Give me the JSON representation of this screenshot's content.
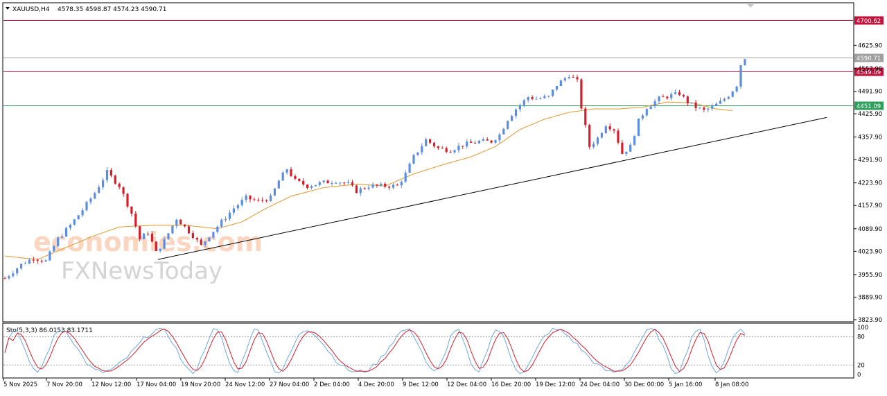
{
  "header": {
    "symbol": "XAUUSD,H4",
    "ohlc": "4578.35 4598.87 4574.23 4590.71"
  },
  "watermark": {
    "line1": "economies.com",
    "line2": "FXNewsToday"
  },
  "chart_data": {
    "type": "candlestick",
    "y_ticks": [
      "4625.90",
      "4557.90",
      "4491.90",
      "4425.90",
      "4357.90",
      "4291.90",
      "4223.90",
      "4157.90",
      "4089.90",
      "4023.90",
      "3955.90",
      "3889.90",
      "3823.90"
    ],
    "ylim": [
      3823.9,
      4700
    ],
    "x_ticks": [
      "5 Nov 2025",
      "7 Nov 20:00",
      "12 Nov 12:00",
      "17 Nov 04:00",
      "19 Nov 20:00",
      "24 Nov 12:00",
      "27 Nov 04:00",
      "2 Dec 04:00",
      "4 Dec 20:00",
      "9 Dec 12:00",
      "12 Dec 04:00",
      "16 Dec 20:00",
      "19 Dec 12:00",
      "24 Dec 04:00",
      "30 Dec 00:00",
      "5 Jan 16:00",
      "8 Jan 08:00"
    ],
    "horizontal_levels": [
      {
        "label": "4700.62",
        "value": 4700.62,
        "color": "#c0143c"
      },
      {
        "label": "4590.71",
        "value": 4590.71,
        "color": "#a0a0a0"
      },
      {
        "label": "4549.09",
        "value": 4549.09,
        "color": "#c0143c"
      },
      {
        "label": "4451.09",
        "value": 4451.09,
        "color": "#2e9e5b"
      }
    ],
    "price_path": [
      [
        0,
        3945
      ],
      [
        4,
        3985
      ],
      [
        7,
        4005
      ],
      [
        10,
        3995
      ],
      [
        13,
        4060
      ],
      [
        16,
        4100
      ],
      [
        19,
        4145
      ],
      [
        22,
        4195
      ],
      [
        25,
        4255
      ],
      [
        28,
        4215
      ],
      [
        31,
        4135
      ],
      [
        33,
        4060
      ],
      [
        35,
        4080
      ],
      [
        37,
        4020
      ],
      [
        39,
        4055
      ],
      [
        42,
        4120
      ],
      [
        44,
        4095
      ],
      [
        46,
        4070
      ],
      [
        48,
        4040
      ],
      [
        50,
        4070
      ],
      [
        53,
        4110
      ],
      [
        56,
        4150
      ],
      [
        59,
        4180
      ],
      [
        62,
        4170
      ],
      [
        65,
        4180
      ],
      [
        67,
        4230
      ],
      [
        69,
        4265
      ],
      [
        71,
        4230
      ],
      [
        74,
        4215
      ],
      [
        78,
        4225
      ],
      [
        81,
        4230
      ],
      [
        84,
        4220
      ],
      [
        86,
        4200
      ],
      [
        89,
        4215
      ],
      [
        93,
        4215
      ],
      [
        96,
        4215
      ],
      [
        98,
        4250
      ],
      [
        100,
        4300
      ],
      [
        103,
        4350
      ],
      [
        106,
        4325
      ],
      [
        109,
        4320
      ],
      [
        112,
        4335
      ],
      [
        116,
        4345
      ],
      [
        119,
        4345
      ],
      [
        121,
        4365
      ],
      [
        123,
        4410
      ],
      [
        125,
        4440
      ],
      [
        128,
        4475
      ],
      [
        130,
        4470
      ],
      [
        133,
        4475
      ],
      [
        135,
        4510
      ],
      [
        138,
        4540
      ],
      [
        140,
        4520
      ],
      [
        141,
        4445
      ],
      [
        143,
        4330
      ],
      [
        145,
        4355
      ],
      [
        147,
        4395
      ],
      [
        149,
        4380
      ],
      [
        151,
        4310
      ],
      [
        153,
        4330
      ],
      [
        155,
        4405
      ],
      [
        157,
        4445
      ],
      [
        160,
        4470
      ],
      [
        163,
        4480
      ],
      [
        165,
        4485
      ],
      [
        167,
        4460
      ],
      [
        169,
        4445
      ],
      [
        171,
        4435
      ],
      [
        173,
        4445
      ],
      [
        175,
        4460
      ],
      [
        177,
        4480
      ],
      [
        179,
        4510
      ],
      [
        180,
        4570
      ],
      [
        181,
        4590
      ]
    ],
    "ma_path": [
      [
        0,
        4010
      ],
      [
        8,
        4000
      ],
      [
        16,
        4040
      ],
      [
        22,
        4070
      ],
      [
        28,
        4095
      ],
      [
        36,
        4100
      ],
      [
        44,
        4100
      ],
      [
        52,
        4090
      ],
      [
        58,
        4110
      ],
      [
        64,
        4150
      ],
      [
        70,
        4185
      ],
      [
        78,
        4210
      ],
      [
        86,
        4220
      ],
      [
        93,
        4215
      ],
      [
        100,
        4250
      ],
      [
        108,
        4280
      ],
      [
        114,
        4300
      ],
      [
        120,
        4330
      ],
      [
        126,
        4380
      ],
      [
        132,
        4410
      ],
      [
        138,
        4430
      ],
      [
        144,
        4440
      ],
      [
        150,
        4440
      ],
      [
        156,
        4445
      ],
      [
        162,
        4460
      ],
      [
        168,
        4458
      ],
      [
        174,
        4440
      ],
      [
        178,
        4435
      ]
    ],
    "trendline": [
      [
        4000,
        4020
      ],
      [
        4425,
        4415
      ]
    ],
    "stochastic": {
      "label": "Sto(5,3,3) 86.0153 83.1711",
      "main": 86.0153,
      "signal": 83.1711,
      "levels": [
        20,
        80
      ],
      "y_ticks": [
        "100",
        "80",
        "20",
        "0"
      ]
    }
  }
}
